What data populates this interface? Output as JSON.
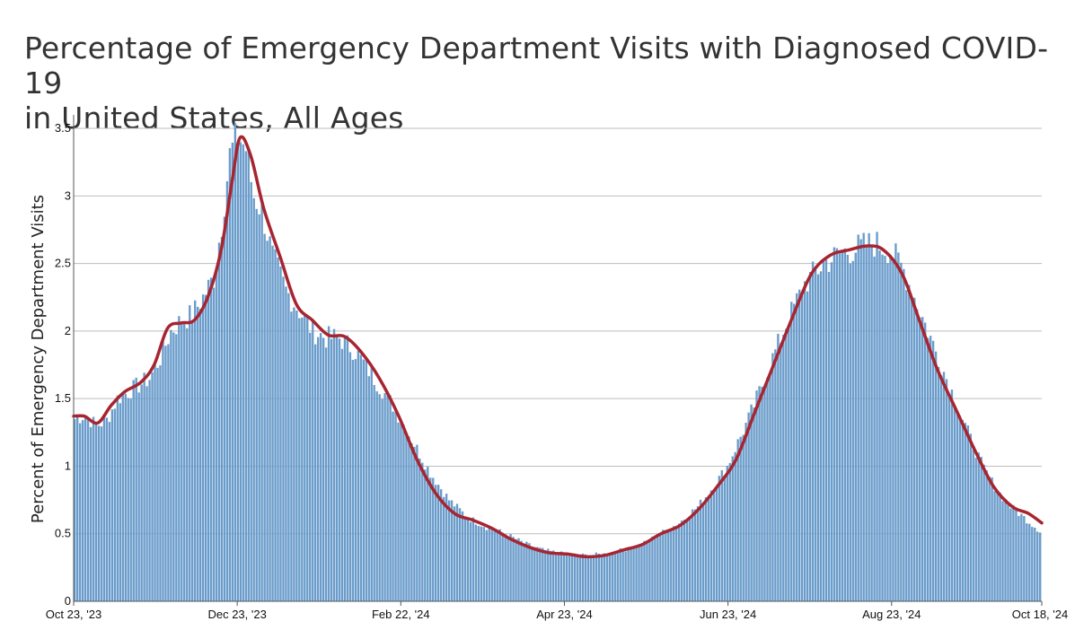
{
  "chart_data": {
    "type": "bar",
    "title": "Percentage of Emergency Department Visits with Diagnosed COVID-19",
    "subtitle": "in United States, All Ages",
    "xlabel": "",
    "ylabel": "Percent of Emergency Department Visits",
    "x_start": "2023-10-23",
    "x_end": "2024-10-18",
    "xlim": [
      "2023-10-23",
      "2024-10-18"
    ],
    "ylim": [
      0,
      3.6
    ],
    "yticks": [
      {
        "value": 0,
        "label": "0"
      },
      {
        "value": 0.5,
        "label": "0.5"
      },
      {
        "value": 1,
        "label": "1"
      },
      {
        "value": 1.5,
        "label": "1.5"
      },
      {
        "value": 2,
        "label": "2"
      },
      {
        "value": 2.5,
        "label": "2.5"
      },
      {
        "value": 3,
        "label": "3"
      },
      {
        "value": 3.5,
        "label": "3.5"
      }
    ],
    "xticks": [
      {
        "date": "2023-10-23",
        "label": "Oct 23, '23"
      },
      {
        "date": "2023-12-23",
        "label": "Dec 23, '23"
      },
      {
        "date": "2024-02-22",
        "label": "Feb 22, '24"
      },
      {
        "date": "2024-04-23",
        "label": "Apr 23, '24"
      },
      {
        "date": "2024-06-23",
        "label": "Jun 23, '24"
      },
      {
        "date": "2024-08-23",
        "label": "Aug 23, '24"
      },
      {
        "date": "2024-10-18",
        "label": "Oct 18, '24"
      }
    ],
    "grid": true,
    "series": [
      {
        "kind": "bar",
        "color": "#6a9ccb",
        "points": [
          [
            "2023-10-23",
            1.35
          ],
          [
            "2023-10-27",
            1.38
          ],
          [
            "2023-10-31",
            1.3
          ],
          [
            "2023-11-04",
            1.34
          ],
          [
            "2023-11-08",
            1.5
          ],
          [
            "2023-11-12",
            1.55
          ],
          [
            "2023-11-16",
            1.6
          ],
          [
            "2023-11-20",
            1.65
          ],
          [
            "2023-11-24",
            1.8
          ],
          [
            "2023-11-28",
            2.0
          ],
          [
            "2023-12-02",
            2.08
          ],
          [
            "2023-12-06",
            2.12
          ],
          [
            "2023-12-10",
            2.25
          ],
          [
            "2023-12-14",
            2.4
          ],
          [
            "2023-12-17",
            2.8
          ],
          [
            "2023-12-20",
            3.3
          ],
          [
            "2023-12-23",
            3.45
          ],
          [
            "2023-12-26",
            3.35
          ],
          [
            "2023-12-29",
            3.0
          ],
          [
            "2024-01-01",
            2.9
          ],
          [
            "2024-01-05",
            2.55
          ],
          [
            "2024-01-10",
            2.3
          ],
          [
            "2024-01-15",
            2.15
          ],
          [
            "2024-01-20",
            2.0
          ],
          [
            "2024-01-25",
            1.95
          ],
          [
            "2024-01-30",
            1.95
          ],
          [
            "2024-02-05",
            1.85
          ],
          [
            "2024-02-12",
            1.65
          ],
          [
            "2024-02-19",
            1.45
          ],
          [
            "2024-02-26",
            1.2
          ],
          [
            "2024-03-04",
            0.95
          ],
          [
            "2024-03-11",
            0.75
          ],
          [
            "2024-03-18",
            0.62
          ],
          [
            "2024-03-25",
            0.55
          ],
          [
            "2024-04-01",
            0.5
          ],
          [
            "2024-04-08",
            0.43
          ],
          [
            "2024-04-15",
            0.38
          ],
          [
            "2024-04-23",
            0.35
          ],
          [
            "2024-05-01",
            0.34
          ],
          [
            "2024-05-08",
            0.35
          ],
          [
            "2024-05-15",
            0.38
          ],
          [
            "2024-05-22",
            0.42
          ],
          [
            "2024-05-29",
            0.5
          ],
          [
            "2024-06-05",
            0.58
          ],
          [
            "2024-06-12",
            0.7
          ],
          [
            "2024-06-19",
            0.88
          ],
          [
            "2024-06-23",
            1.0
          ],
          [
            "2024-07-01",
            1.35
          ],
          [
            "2024-07-08",
            1.7
          ],
          [
            "2024-07-15",
            2.05
          ],
          [
            "2024-07-22",
            2.35
          ],
          [
            "2024-07-29",
            2.5
          ],
          [
            "2024-08-05",
            2.58
          ],
          [
            "2024-08-12",
            2.62
          ],
          [
            "2024-08-17",
            2.65
          ],
          [
            "2024-08-23",
            2.6
          ],
          [
            "2024-08-28",
            2.45
          ],
          [
            "2024-09-02",
            2.2
          ],
          [
            "2024-09-07",
            1.95
          ],
          [
            "2024-09-12",
            1.7
          ],
          [
            "2024-09-17",
            1.45
          ],
          [
            "2024-09-22",
            1.2
          ],
          [
            "2024-09-27",
            0.98
          ],
          [
            "2024-10-02",
            0.82
          ],
          [
            "2024-10-07",
            0.7
          ],
          [
            "2024-10-12",
            0.62
          ],
          [
            "2024-10-18",
            0.52
          ]
        ]
      },
      {
        "kind": "line",
        "color": "#a72530",
        "points": [
          [
            "2023-10-23",
            1.37
          ],
          [
            "2023-10-27",
            1.37
          ],
          [
            "2023-11-01",
            1.32
          ],
          [
            "2023-11-06",
            1.45
          ],
          [
            "2023-11-11",
            1.55
          ],
          [
            "2023-11-17",
            1.62
          ],
          [
            "2023-11-22",
            1.75
          ],
          [
            "2023-11-27",
            2.02
          ],
          [
            "2023-12-02",
            2.06
          ],
          [
            "2023-12-07",
            2.08
          ],
          [
            "2023-12-12",
            2.25
          ],
          [
            "2023-12-17",
            2.6
          ],
          [
            "2023-12-21",
            3.1
          ],
          [
            "2023-12-24",
            3.43
          ],
          [
            "2023-12-28",
            3.3
          ],
          [
            "2024-01-02",
            2.9
          ],
          [
            "2024-01-08",
            2.55
          ],
          [
            "2024-01-14",
            2.2
          ],
          [
            "2024-01-20",
            2.08
          ],
          [
            "2024-01-26",
            1.97
          ],
          [
            "2024-02-01",
            1.96
          ],
          [
            "2024-02-07",
            1.85
          ],
          [
            "2024-02-14",
            1.65
          ],
          [
            "2024-02-21",
            1.38
          ],
          [
            "2024-02-28",
            1.05
          ],
          [
            "2024-03-06",
            0.8
          ],
          [
            "2024-03-13",
            0.65
          ],
          [
            "2024-03-20",
            0.6
          ],
          [
            "2024-03-27",
            0.54
          ],
          [
            "2024-04-03",
            0.46
          ],
          [
            "2024-04-10",
            0.4
          ],
          [
            "2024-04-17",
            0.36
          ],
          [
            "2024-04-24",
            0.35
          ],
          [
            "2024-05-01",
            0.33
          ],
          [
            "2024-05-08",
            0.34
          ],
          [
            "2024-05-15",
            0.38
          ],
          [
            "2024-05-22",
            0.42
          ],
          [
            "2024-05-29",
            0.5
          ],
          [
            "2024-06-05",
            0.56
          ],
          [
            "2024-06-12",
            0.68
          ],
          [
            "2024-06-19",
            0.85
          ],
          [
            "2024-06-26",
            1.05
          ],
          [
            "2024-07-03",
            1.4
          ],
          [
            "2024-07-10",
            1.75
          ],
          [
            "2024-07-17",
            2.1
          ],
          [
            "2024-07-24",
            2.42
          ],
          [
            "2024-07-31",
            2.56
          ],
          [
            "2024-08-07",
            2.6
          ],
          [
            "2024-08-14",
            2.63
          ],
          [
            "2024-08-20",
            2.6
          ],
          [
            "2024-08-27",
            2.42
          ],
          [
            "2024-09-02",
            2.1
          ],
          [
            "2024-09-09",
            1.72
          ],
          [
            "2024-09-16",
            1.42
          ],
          [
            "2024-09-23",
            1.12
          ],
          [
            "2024-09-30",
            0.85
          ],
          [
            "2024-10-07",
            0.7
          ],
          [
            "2024-10-13",
            0.65
          ],
          [
            "2024-10-18",
            0.58
          ]
        ]
      }
    ]
  }
}
